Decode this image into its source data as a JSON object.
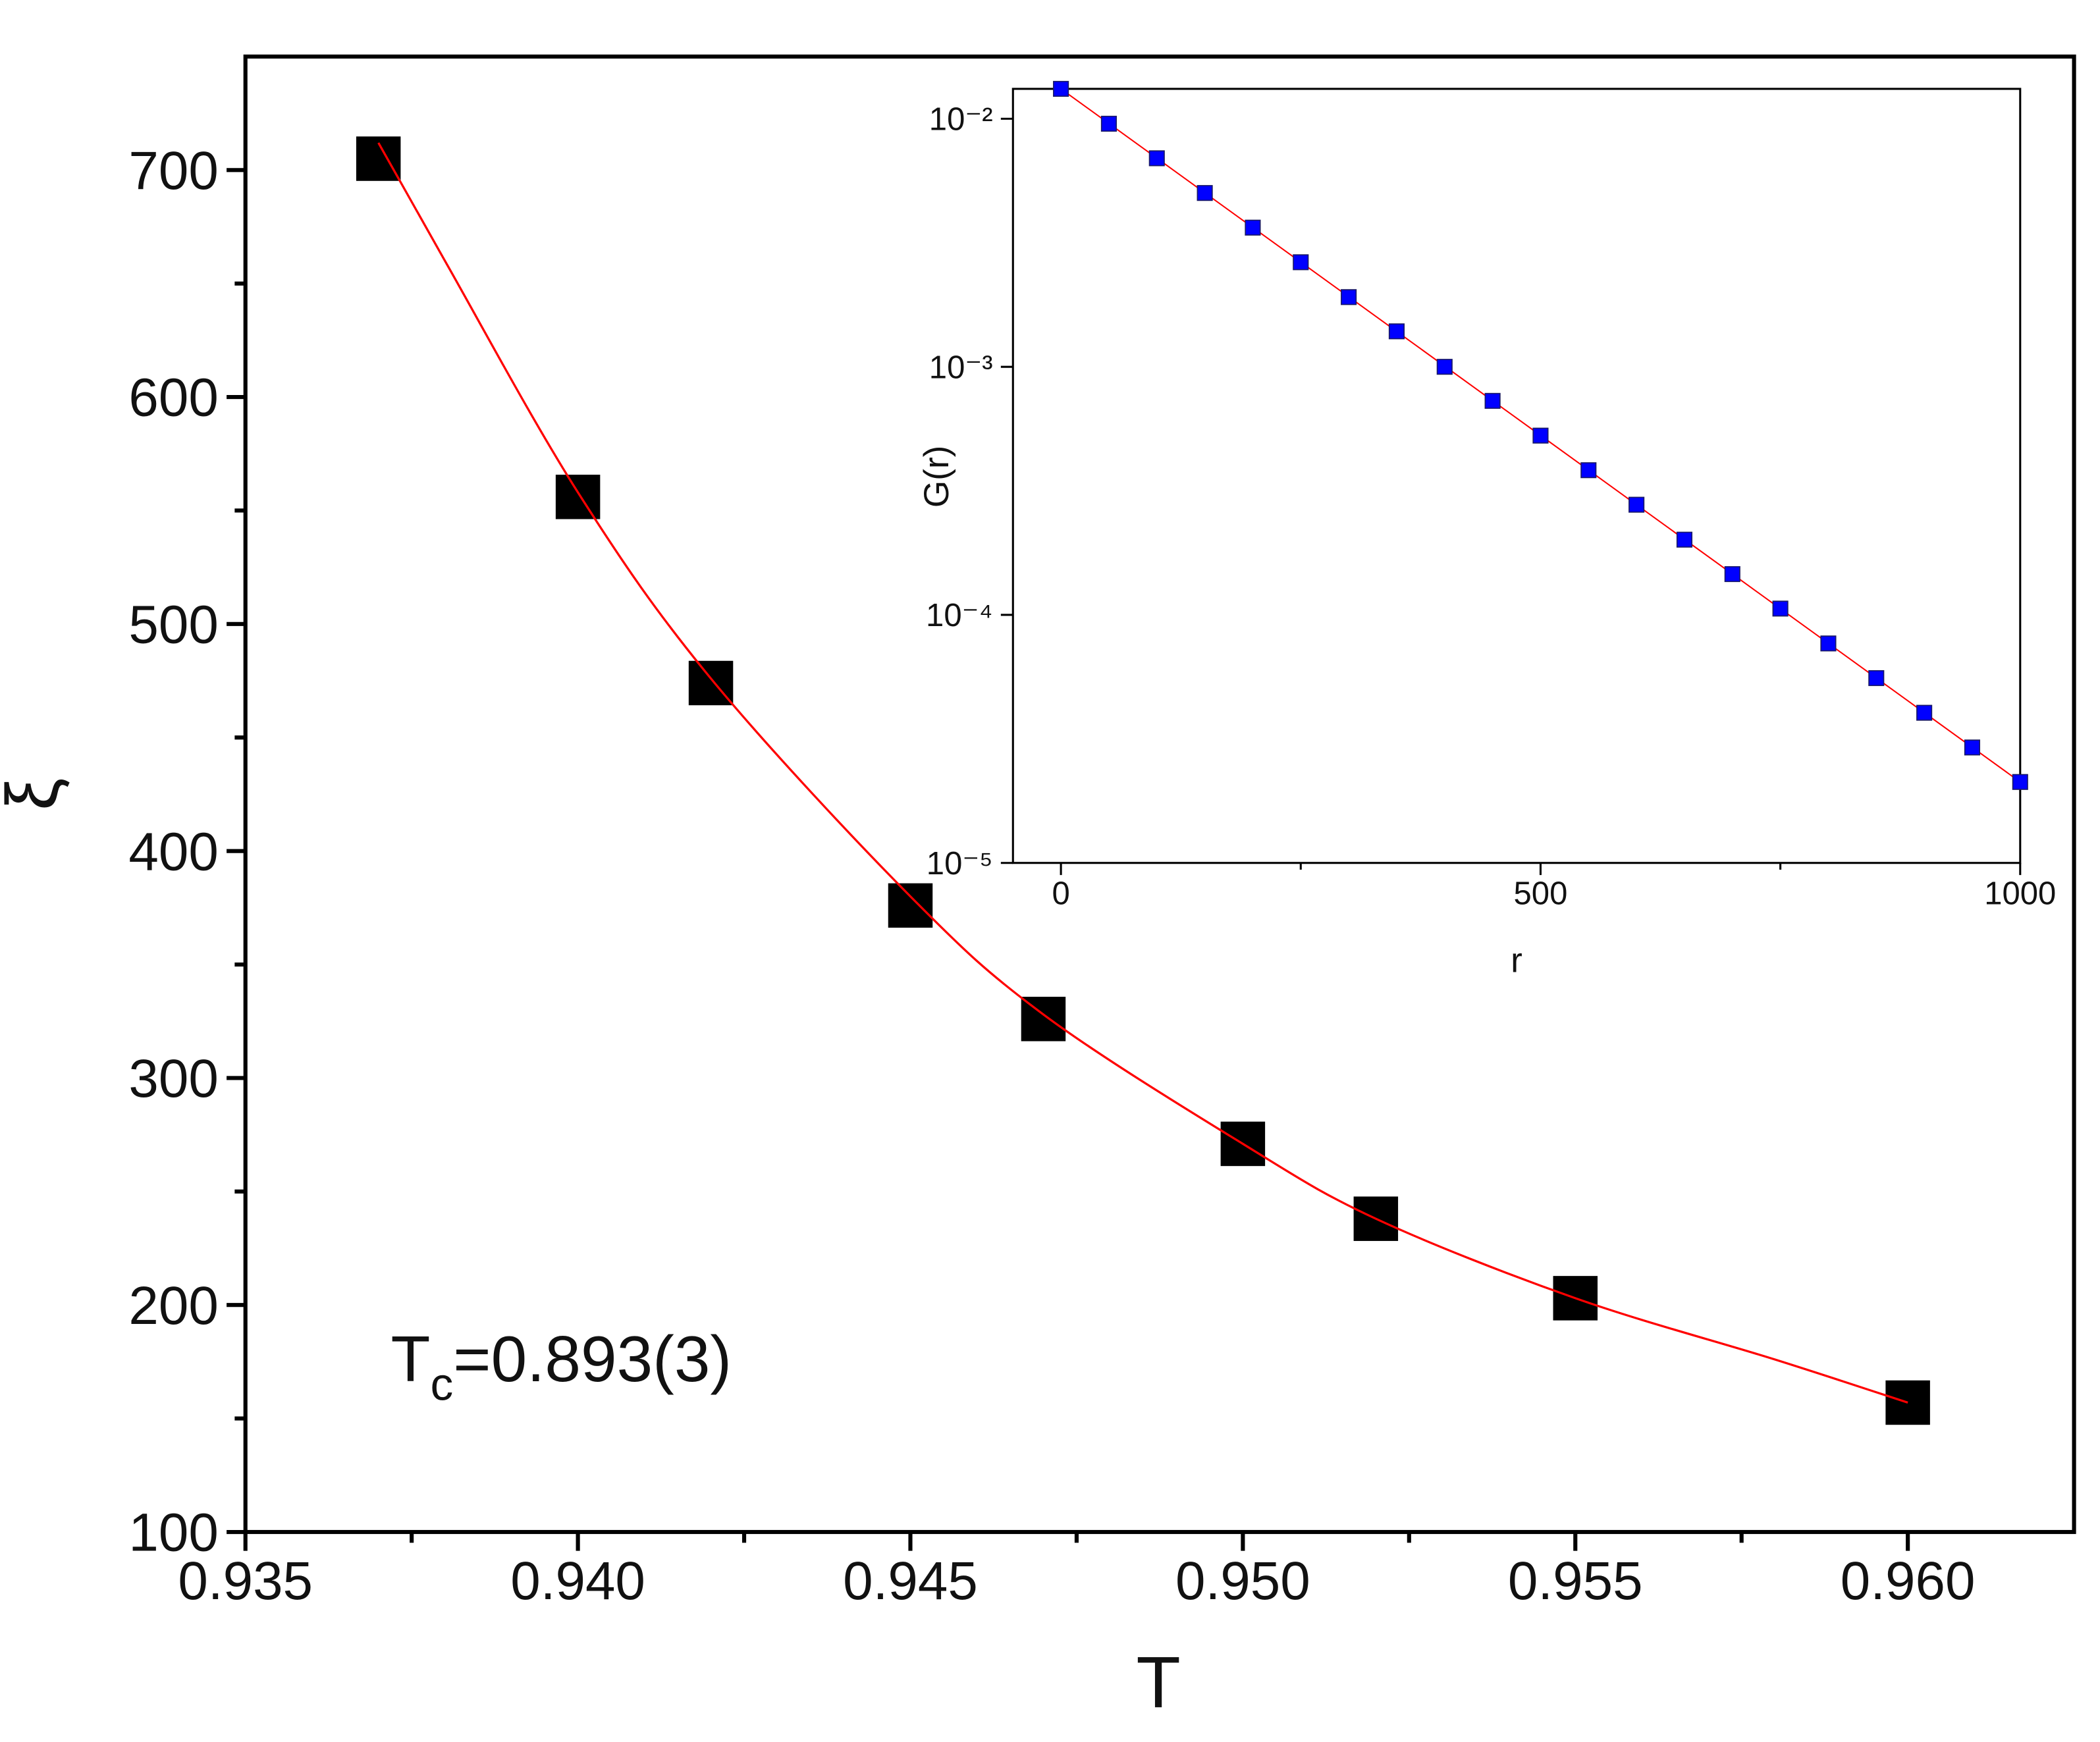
{
  "chart_data": [
    {
      "type": "scatter",
      "xlabel": "T",
      "ylabel": "ξ",
      "annotation": {
        "main": "T",
        "sub": "c",
        "rest": "=0.893(3)"
      },
      "xlim": [
        0.935,
        0.9625
      ],
      "ylim": [
        100,
        750
      ],
      "xticks": [
        {
          "value": 0.935,
          "label": "0.935"
        },
        {
          "value": 0.94,
          "label": "0.940"
        },
        {
          "value": 0.945,
          "label": "0.945"
        },
        {
          "value": 0.95,
          "label": "0.950"
        },
        {
          "value": 0.955,
          "label": "0.955"
        },
        {
          "value": 0.96,
          "label": "0.960"
        }
      ],
      "xminorticks": [
        0.9375,
        0.9425,
        0.9475,
        0.9525,
        0.9575
      ],
      "yticks": [
        100,
        200,
        300,
        400,
        500,
        600,
        700
      ],
      "yminorticks": [
        150,
        250,
        350,
        450,
        550,
        650
      ],
      "series": [
        {
          "style": "square",
          "color": "#000000",
          "x": [
            0.937,
            0.94,
            0.942,
            0.945,
            0.947,
            0.95,
            0.952,
            0.955,
            0.96
          ],
          "values": [
            705,
            556,
            474,
            376,
            326,
            271,
            238,
            203,
            157
          ]
        },
        {
          "style": "line",
          "color": "#ff0000",
          "x": [
            0.937,
            0.938,
            0.94,
            0.942,
            0.945,
            0.947,
            0.95,
            0.952,
            0.955,
            0.958,
            0.96
          ],
          "values": [
            712,
            660,
            558,
            476,
            380,
            328,
            271,
            238,
            203,
            176,
            157
          ]
        }
      ]
    },
    {
      "type": "scatter",
      "xlabel": "r",
      "ylabel": "G(r)",
      "ylog": true,
      "xlim": [
        -50,
        1000
      ],
      "ylim": [
        1e-05,
        0.0132
      ],
      "xticks": [
        0,
        500,
        1000
      ],
      "xminorticks": [
        250,
        750
      ],
      "yticks": [
        {
          "value": 0.01,
          "label": "10⁻²"
        },
        {
          "value": 0.001,
          "label": "10⁻³"
        },
        {
          "value": 0.0001,
          "label": "10⁻⁴"
        },
        {
          "value": 1e-05,
          "label": "10⁻⁵"
        }
      ],
      "yminorticks": [],
      "series": [
        {
          "style": "line",
          "color": "#ff0000",
          "x": [
            0,
            1000
          ],
          "values": [
            0.0132,
            2.12e-05
          ]
        },
        {
          "style": "square",
          "color": "#0000ff",
          "x": [
            0,
            50,
            100,
            150,
            200,
            250,
            300,
            350,
            400,
            450,
            500,
            550,
            600,
            650,
            700,
            750,
            800,
            850,
            900,
            950,
            1000
          ],
          "values": [
            0.0132,
            0.00955,
            0.00693,
            0.00502,
            0.00364,
            0.00264,
            0.00191,
            0.00139,
            0.001,
            0.000729,
            0.000528,
            0.000383,
            0.000278,
            0.000201,
            0.000146,
            0.000106,
            7.67e-05,
            5.56e-05,
            4.03e-05,
            2.92e-05,
            2.12e-05
          ]
        }
      ]
    }
  ]
}
